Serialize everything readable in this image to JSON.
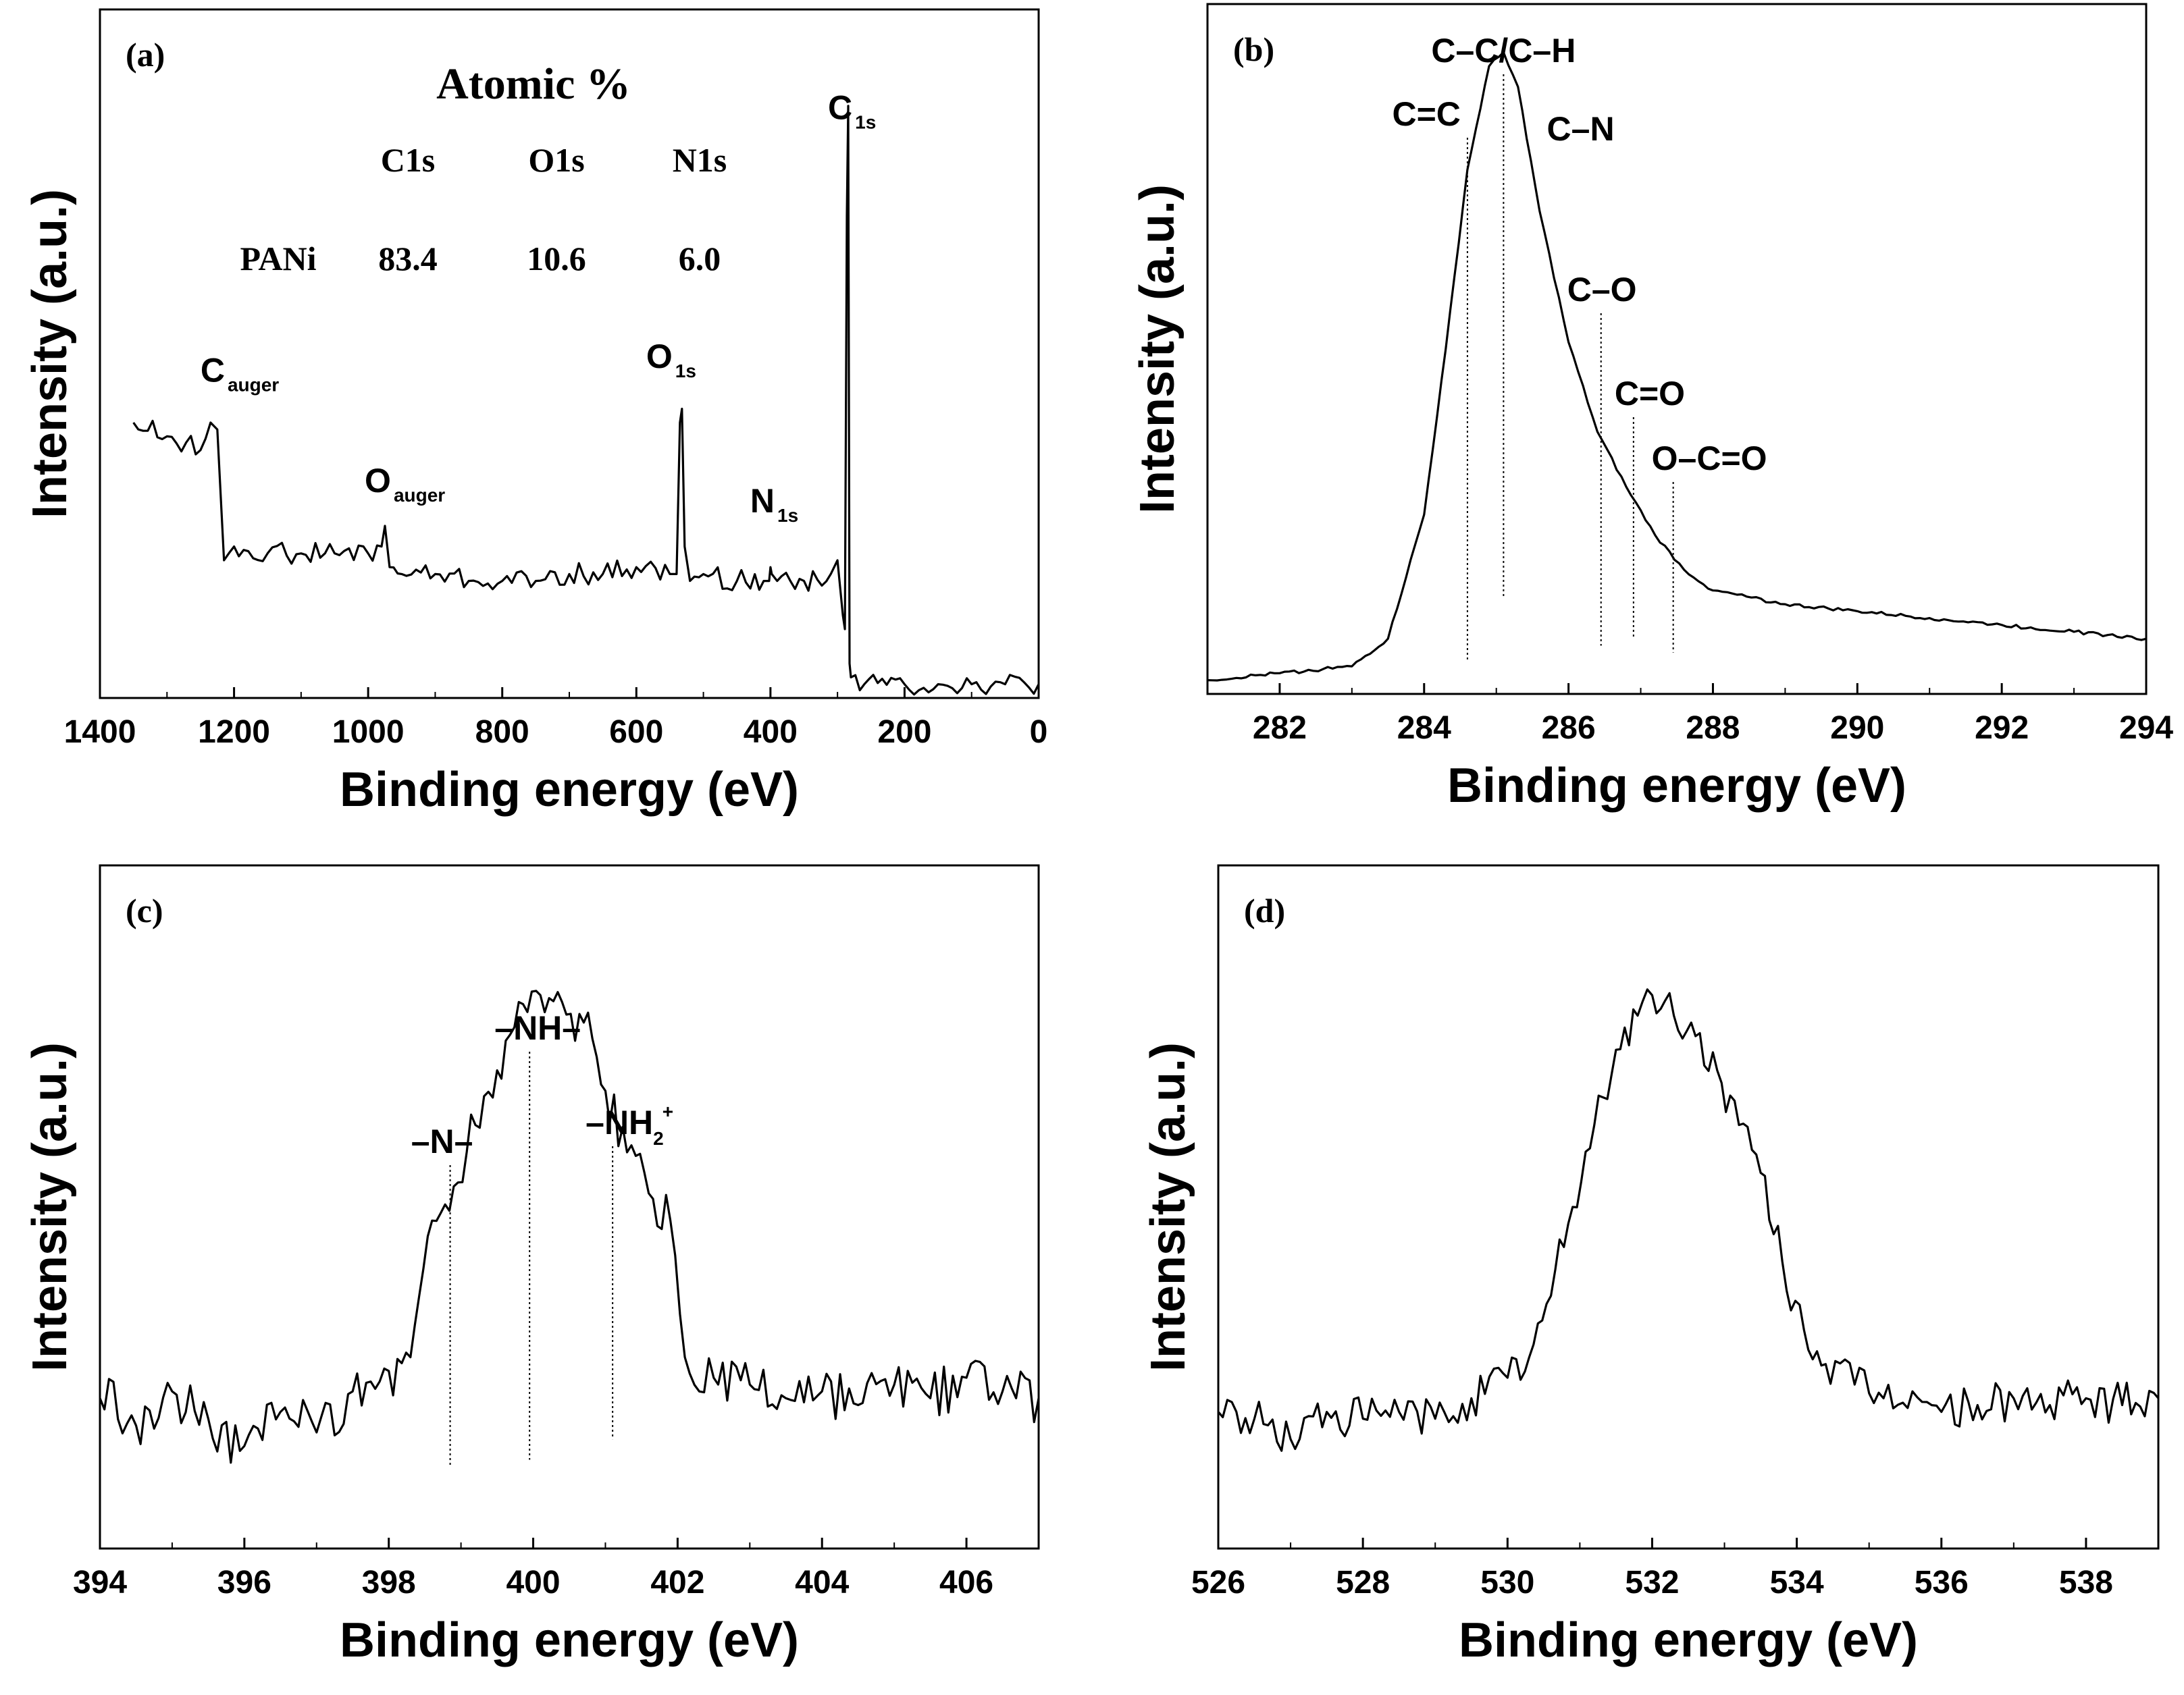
{
  "chart_data": [
    {
      "id": "a",
      "type": "line",
      "panel_label": "(a)",
      "xlabel": "Binding energy (eV)",
      "ylabel": "Intensity (a.u.)",
      "xlim": [
        1400,
        0
      ],
      "x_reversed": true,
      "xticks": [
        1400,
        1200,
        1000,
        800,
        600,
        400,
        200,
        0
      ],
      "ylim": [
        0,
        100
      ],
      "series": [
        {
          "x": [
            1350,
            1300,
            1250,
            1235,
            1225,
            1215,
            1200,
            1150,
            1100,
            1050,
            1000,
            980,
            975,
            968,
            950,
            900,
            850,
            800,
            750,
            700,
            650,
            600,
            550,
            540,
            535,
            532,
            528,
            520,
            500,
            450,
            410,
            402,
            400,
            398,
            390,
            350,
            310,
            300,
            295,
            292,
            289,
            286,
            284,
            282,
            280,
            260,
            200,
            150,
            100,
            50,
            0
          ],
          "y": [
            40,
            38,
            36,
            40,
            39,
            20,
            22,
            21,
            21,
            21,
            21,
            22,
            25,
            19,
            18,
            18,
            17,
            17,
            17,
            18,
            18,
            19,
            18,
            18,
            40,
            42,
            22,
            17,
            18,
            17,
            17,
            17,
            19,
            18,
            17,
            17,
            18,
            20,
            15,
            12,
            10,
            70,
            86,
            5,
            3,
            2,
            2,
            2,
            2,
            2,
            2
          ]
        }
      ],
      "annotations": [
        {
          "text": "C",
          "sub": "1s",
          "x": 284,
          "y": 88
        },
        {
          "text": "C",
          "sub": "auger",
          "x": 1240,
          "y": 42
        },
        {
          "text": "O",
          "sub": "auger",
          "x": 985,
          "y": 26
        },
        {
          "text": "O",
          "sub": "1s",
          "x": 545,
          "y": 44
        },
        {
          "text": "N",
          "sub": "1s",
          "x": 410,
          "y": 24
        }
      ],
      "table": {
        "title": "Atomic %",
        "columns": [
          "C1s",
          "O1s",
          "N1s"
        ],
        "rows": [
          {
            "label": "PANi",
            "values": [
              "83.4",
              "10.6",
              "6.0"
            ]
          }
        ]
      }
    },
    {
      "id": "b",
      "type": "line",
      "panel_label": "(b)",
      "xlabel": "Binding energy (eV)",
      "ylabel": "Intensity (a.u.)",
      "xlim": [
        281,
        294
      ],
      "xticks": [
        282,
        284,
        286,
        288,
        290,
        292,
        294
      ],
      "ylim": [
        0,
        100
      ],
      "series": [
        {
          "x": [
            281,
            282,
            283,
            283.5,
            284,
            284.3,
            284.6,
            284.9,
            285.1,
            285.3,
            285.6,
            286,
            286.4,
            286.8,
            287.2,
            287.6,
            288,
            289,
            290,
            291,
            292,
            293,
            294
          ],
          "y": [
            2,
            3,
            4,
            8,
            26,
            50,
            76,
            91,
            93,
            88,
            70,
            51,
            38,
            30,
            23,
            18,
            15,
            13,
            12,
            11,
            10,
            9,
            8
          ]
        }
      ],
      "annotations": [
        {
          "text": "C=C",
          "x": 284.6,
          "line_to": 5
        },
        {
          "text": "C–C/C–H",
          "x": 285.1,
          "line_to": 14
        },
        {
          "text": "C–N",
          "x": 285.7
        },
        {
          "text": "C–O",
          "x": 286.45,
          "line_to": 7
        },
        {
          "text": "C=O",
          "x": 286.9,
          "line_to": 8
        },
        {
          "text": "O–C=O",
          "x": 287.45,
          "line_to": 6
        }
      ]
    },
    {
      "id": "c",
      "type": "line",
      "panel_label": "(c)",
      "xlabel": "Binding energy (eV)",
      "ylabel": "Intensity (a.u.)",
      "xlim": [
        394,
        407
      ],
      "xticks": [
        394,
        396,
        398,
        400,
        402,
        404,
        406
      ],
      "ylim": [
        0,
        100
      ],
      "series": [
        {
          "x": [
            394,
            394.5,
            395,
            395.5,
            396,
            396.5,
            397,
            397.5,
            398,
            398.3,
            398.6,
            398.9,
            399.2,
            399.5,
            399.8,
            400.1,
            400.4,
            400.7,
            401,
            401.3,
            401.6,
            401.9,
            402.1,
            402.5,
            403,
            403.5,
            404,
            404.5,
            405,
            405.5,
            406,
            406.5,
            407
          ],
          "y": [
            22,
            18,
            23,
            19,
            15,
            20,
            17,
            23,
            26,
            28,
            48,
            53,
            62,
            70,
            80,
            81,
            80,
            77,
            67,
            58,
            52,
            48,
            28,
            25,
            24,
            22,
            23,
            21,
            24,
            22,
            25,
            23,
            22
          ]
        }
      ],
      "annotations": [
        {
          "text": "–N–",
          "x": 398.85,
          "line_to": 12
        },
        {
          "text": "–NH–",
          "x": 399.95,
          "line_to": 13
        },
        {
          "text": "–NH",
          "sub": "2",
          "sup": "+",
          "x": 401.1,
          "line_to": 16
        }
      ]
    },
    {
      "id": "d",
      "type": "line",
      "panel_label": "(d)",
      "xlabel": "Binding energy (eV)",
      "ylabel": "Intensity (a.u.)",
      "xlim": [
        526,
        539
      ],
      "xticks": [
        526,
        528,
        530,
        532,
        534,
        536,
        538
      ],
      "ylim": [
        0,
        100
      ],
      "series": [
        {
          "x": [
            526,
            526.5,
            527,
            527.5,
            528,
            528.5,
            529,
            529.5,
            530,
            530.3,
            530.6,
            530.9,
            531.2,
            531.5,
            531.8,
            532,
            532.3,
            532.6,
            532.9,
            533.2,
            533.5,
            533.8,
            534.1,
            534.4,
            534.8,
            535.2,
            535.6,
            536,
            536.5,
            537,
            537.5,
            538,
            538.5,
            539
          ],
          "y": [
            20,
            19,
            16,
            20,
            19,
            20,
            19,
            22,
            25,
            28,
            37,
            50,
            62,
            73,
            78,
            81,
            78,
            75,
            70,
            62,
            55,
            42,
            32,
            27,
            24,
            22,
            23,
            20,
            21,
            22,
            21,
            22,
            21,
            22
          ]
        }
      ]
    }
  ]
}
